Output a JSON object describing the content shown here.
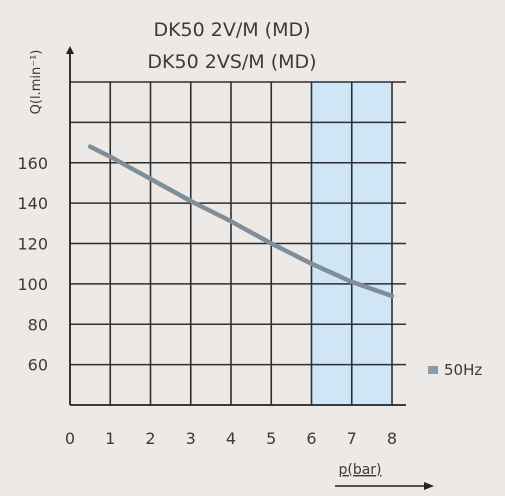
{
  "chart_data": {
    "type": "line",
    "title_line1": "DK50 2V/M (MD)",
    "title_line2": "DK50 2VS/M (MD)",
    "xlabel": "p(bar)",
    "ylabel": "Q(l.min⁻¹)",
    "xlim": [
      0,
      8
    ],
    "ylim": [
      40,
      200
    ],
    "xticks": [
      0,
      1,
      2,
      3,
      4,
      5,
      6,
      7,
      8
    ],
    "yticks": [
      60,
      80,
      100,
      120,
      140,
      160
    ],
    "grid": true,
    "shaded_range": {
      "x_from": 6,
      "x_to": 8,
      "color": "#cfe6f6"
    },
    "legend": {
      "label": "50Hz",
      "position": "right",
      "marker_color": "#8a9aa6"
    },
    "series": [
      {
        "color": "#7f8e99",
        "x": [
          0.5,
          1,
          2,
          3,
          4,
          5,
          6,
          7,
          8
        ],
        "y": [
          168,
          163,
          152,
          141,
          131,
          120,
          110,
          101,
          94
        ]
      }
    ]
  }
}
